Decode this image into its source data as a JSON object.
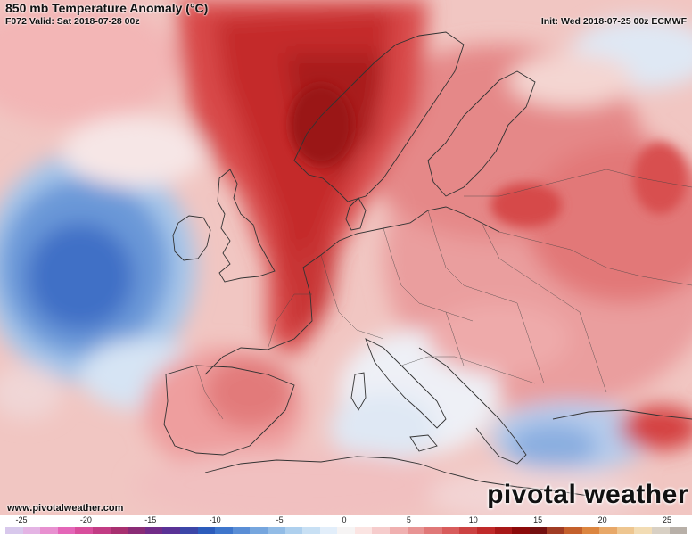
{
  "header": {
    "title": "850 mb Temperature Anomaly (°C)",
    "valid": "F072 Valid: Sat 2018-07-28 00z",
    "init": "Init: Wed 2018-07-25 00z ECMWF"
  },
  "footer": {
    "website": "www.pivotalweather.com",
    "brand": "pivotal weather"
  },
  "colorbar": {
    "ticks": [
      "-25",
      "-20",
      "-15",
      "-10",
      "-5",
      "0",
      "5",
      "10",
      "15",
      "20",
      "25"
    ],
    "colors": [
      "#d8c8ec",
      "#e4b4e4",
      "#e890d0",
      "#e466b8",
      "#d84e9c",
      "#c23c84",
      "#a83070",
      "#8a2c76",
      "#722c88",
      "#5a3296",
      "#3c46a8",
      "#2c5cbc",
      "#3e76cc",
      "#5a8ed6",
      "#76a6de",
      "#92bce6",
      "#aed0ee",
      "#c8e0f4",
      "#e2eefa",
      "#f6f4f4",
      "#fbe4e2",
      "#f6cccc",
      "#f0b0b0",
      "#e89494",
      "#e07878",
      "#d85c5c",
      "#cc4242",
      "#c02a2a",
      "#a81818",
      "#8c0a0a",
      "#741010",
      "#a03c24",
      "#c4602c",
      "#dc8640",
      "#e8a868",
      "#eec690",
      "#f2dcb4",
      "#d8d0c4",
      "#b8b0a8"
    ]
  },
  "map": {
    "background_color": "#f1c6c2",
    "border_color": "#333333"
  }
}
